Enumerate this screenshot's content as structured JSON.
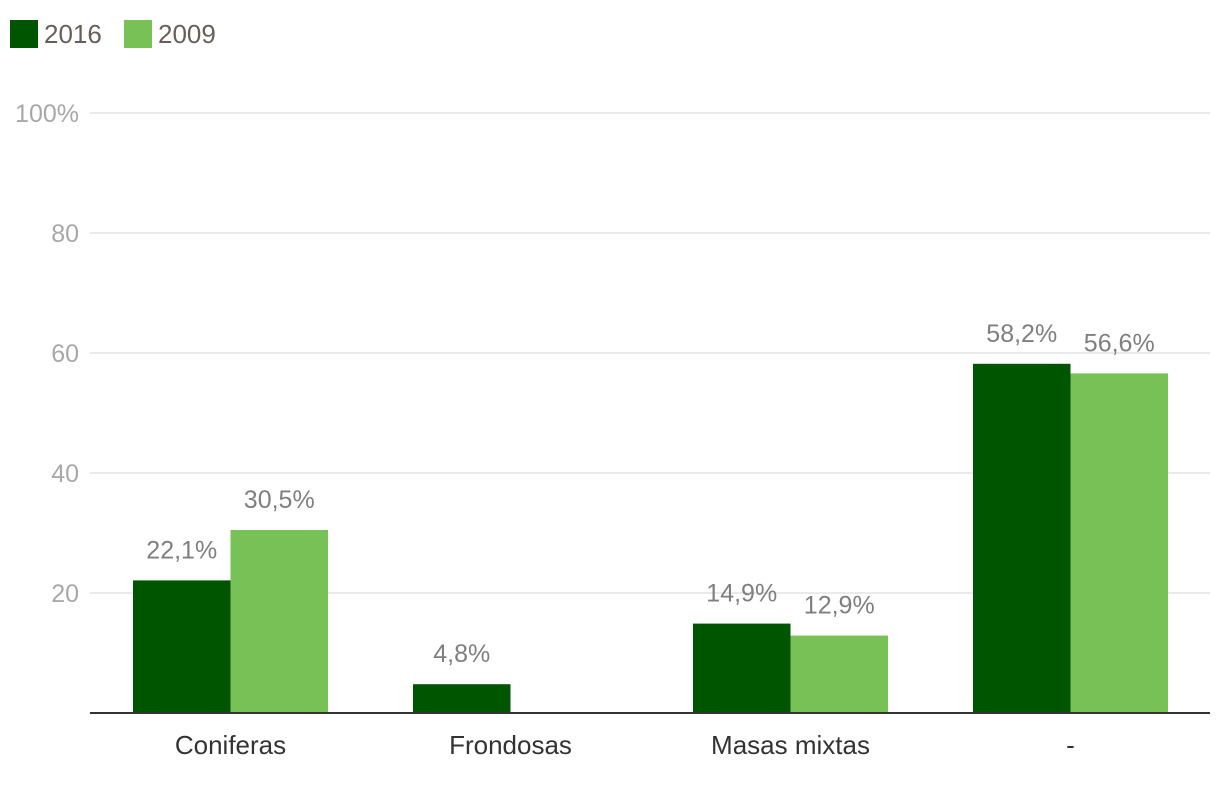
{
  "chart_data": {
    "type": "bar",
    "categories": [
      "Coniferas",
      "Frondosas",
      "Masas mixtas",
      "-"
    ],
    "series": [
      {
        "name": "2016",
        "color": "#005500",
        "values": [
          22.1,
          4.8,
          14.9,
          58.2
        ],
        "labels": [
          "22,1%",
          "4,8%",
          "14,9%",
          "58,2%"
        ]
      },
      {
        "name": "2009",
        "color": "#77c157",
        "values": [
          30.5,
          null,
          12.9,
          56.6
        ],
        "labels": [
          "30,5%",
          "",
          "12,9%",
          "56,6%"
        ]
      }
    ],
    "ylim": [
      0,
      100
    ],
    "yticks": [
      {
        "value": 100,
        "label": "100%"
      },
      {
        "value": 80,
        "label": "80"
      },
      {
        "value": 60,
        "label": "60"
      },
      {
        "value": 40,
        "label": "40"
      },
      {
        "value": 20,
        "label": "20"
      }
    ],
    "grid": true,
    "legend_position": "top-left",
    "title": "",
    "xlabel": "",
    "ylabel": ""
  }
}
